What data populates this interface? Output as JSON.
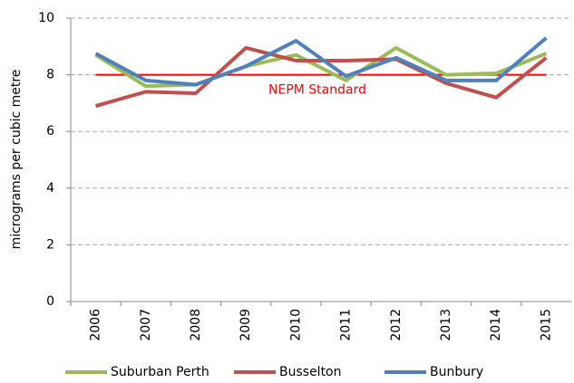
{
  "chart_data": {
    "type": "line",
    "y_label": "micrograms per cubic metre",
    "categories": [
      "2006",
      "2007",
      "2008",
      "2009",
      "2010",
      "2011",
      "2012",
      "2013",
      "2014",
      "2015"
    ],
    "series": [
      {
        "name": "Suburban Perth",
        "color": "#9bbb59",
        "values": [
          8.7,
          7.6,
          7.65,
          8.3,
          8.7,
          7.8,
          8.95,
          8.0,
          8.05,
          8.75
        ]
      },
      {
        "name": "Busselton",
        "color": "#c0504d",
        "values": [
          6.9,
          7.4,
          7.35,
          8.95,
          8.5,
          8.5,
          8.55,
          7.7,
          7.2,
          8.6
        ]
      },
      {
        "name": "Bunbury",
        "color": "#4f81bd",
        "values": [
          8.75,
          7.8,
          7.65,
          8.3,
          9.2,
          7.95,
          8.6,
          7.8,
          7.8,
          9.3
        ]
      }
    ],
    "standard": {
      "value": 8,
      "label": "NEPM Standard",
      "color": "#ff0000"
    },
    "ylim": [
      0,
      10
    ],
    "yticks": [
      0,
      2,
      4,
      6,
      8,
      10
    ],
    "grid": true
  }
}
